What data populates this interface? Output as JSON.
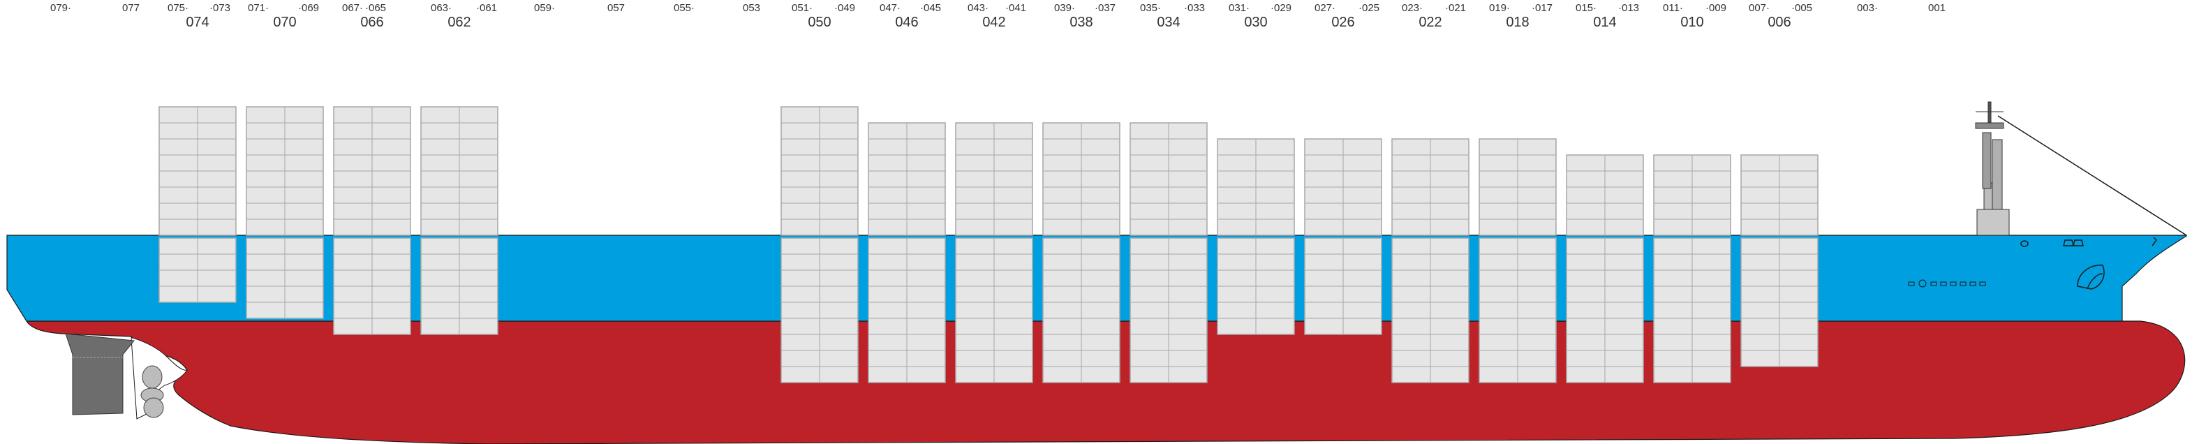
{
  "diagram": {
    "colors": {
      "hull_upper": "#009fe0",
      "hull_lower": "#be2229",
      "container_fill": "#e6e6e6",
      "container_stroke": "#a7a7a7",
      "label_text": "#333333",
      "outline": "#1a1a1a",
      "rudder": "#6d6d6d",
      "propeller": "#bcbcbc",
      "deckhouse": "#c8c8c8"
    },
    "small_labels": [
      "079·",
      "077",
      "075·",
      "·073",
      "071·",
      "·069",
      "067·",
      "·065",
      "063·",
      "·061",
      "059·",
      "057",
      "055·",
      "053",
      "051·",
      "·049",
      "047·",
      "·045",
      "043·",
      "·041",
      "039·",
      "·037",
      "035·",
      "·033",
      "031·",
      "·029",
      "027·",
      "·025",
      "023·",
      "·021",
      "019·",
      "·017",
      "015·",
      "·013",
      "011·",
      "·009",
      "007·",
      "·005",
      "003·",
      "001"
    ],
    "big_labels": [
      "074",
      "070",
      "066",
      "062",
      "050",
      "046",
      "042",
      "038",
      "034",
      "030",
      "026",
      "022",
      "018",
      "014",
      "010",
      "006"
    ],
    "bays": [
      {
        "id": "074",
        "above_tiers": 8,
        "below_tiers": 4
      },
      {
        "id": "070",
        "above_tiers": 8,
        "below_tiers": 5
      },
      {
        "id": "066",
        "above_tiers": 8,
        "below_tiers": 6
      },
      {
        "id": "062",
        "above_tiers": 8,
        "below_tiers": 6
      },
      {
        "id": "050",
        "above_tiers": 8,
        "below_tiers": 9
      },
      {
        "id": "046",
        "above_tiers": 7,
        "below_tiers": 9
      },
      {
        "id": "042",
        "above_tiers": 7,
        "below_tiers": 9
      },
      {
        "id": "038",
        "above_tiers": 7,
        "below_tiers": 9
      },
      {
        "id": "034",
        "above_tiers": 7,
        "below_tiers": 9
      },
      {
        "id": "030",
        "above_tiers": 6,
        "below_tiers": 6
      },
      {
        "id": "026",
        "above_tiers": 6,
        "below_tiers": 6
      },
      {
        "id": "022",
        "above_tiers": 6,
        "below_tiers": 9
      },
      {
        "id": "018",
        "above_tiers": 6,
        "below_tiers": 9
      },
      {
        "id": "014",
        "above_tiers": 5,
        "below_tiers": 9
      },
      {
        "id": "010",
        "above_tiers": 5,
        "below_tiers": 9
      },
      {
        "id": "006",
        "above_tiers": 5,
        "below_tiers": 8
      }
    ]
  }
}
